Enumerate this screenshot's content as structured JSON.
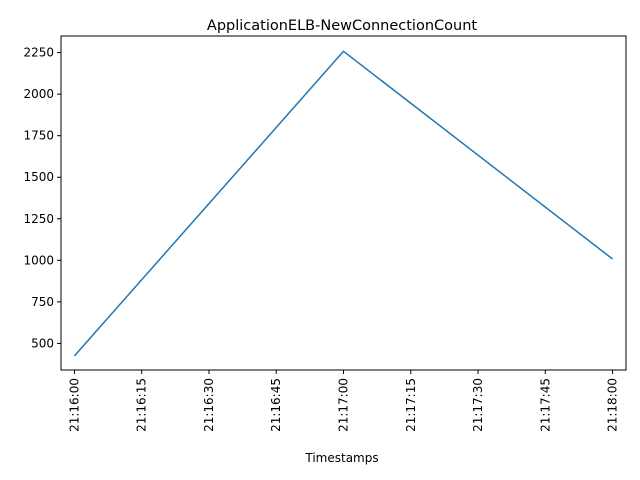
{
  "chart_data": {
    "type": "line",
    "title": "ApplicationELB-NewConnectionCount",
    "xlabel": "Timestamps",
    "ylabel": "",
    "x_ticks": [
      "21:16:00",
      "21:16:15",
      "21:16:30",
      "21:16:45",
      "21:17:00",
      "21:17:15",
      "21:17:30",
      "21:17:45",
      "21:18:00"
    ],
    "y_ticks": [
      500,
      750,
      1000,
      1250,
      1500,
      1750,
      2000,
      2250
    ],
    "xlim": [
      "21:15:57",
      "21:18:03"
    ],
    "ylim": [
      340,
      2350
    ],
    "grid": false,
    "series": [
      {
        "color": "#1f77b4",
        "x": [
          "21:16:00",
          "21:17:00",
          "21:18:00"
        ],
        "values": [
          425,
          2258,
          1008
        ]
      }
    ]
  }
}
